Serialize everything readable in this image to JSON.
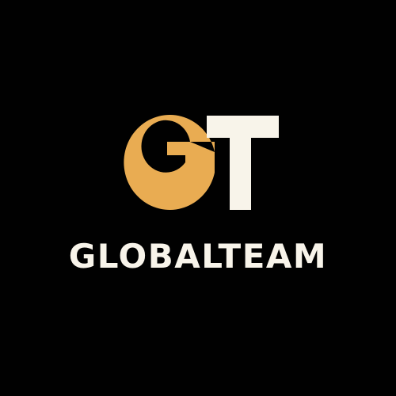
{
  "logo": {
    "monogram": "GT",
    "wordmark": "GLOBALTEAM"
  },
  "colors": {
    "background": "#010101",
    "gold": "#e9ac52",
    "cream": "#f8f4ea"
  }
}
